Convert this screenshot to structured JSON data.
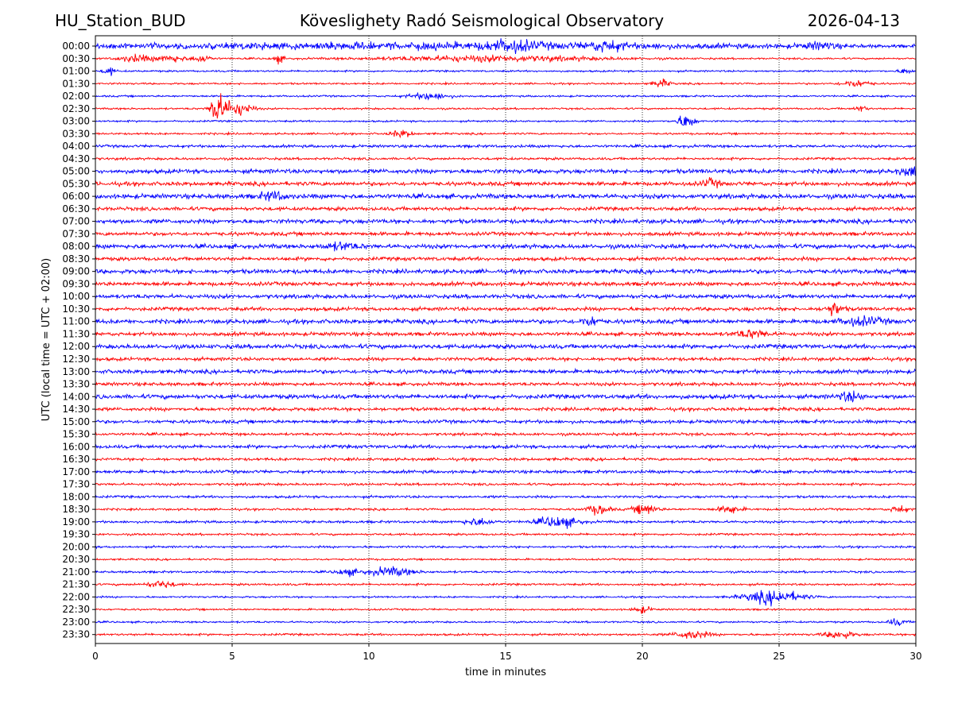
{
  "header": {
    "station": "HU_Station_BUD",
    "observatory": "Köveslighety Radó Seismological Observatory",
    "date": "2026-04-13"
  },
  "chart_data": {
    "type": "line",
    "title": "Köveslighety Radó Seismological Observatory",
    "xlabel": "time in minutes",
    "ylabel": "UTC (local time = UTC + 02:00)",
    "xlim": [
      0,
      30
    ],
    "x_ticks": [
      0,
      5,
      10,
      15,
      20,
      25,
      30
    ],
    "x_tick_labels": [
      "0",
      "5",
      "10",
      "15",
      "20",
      "25",
      "30"
    ],
    "grid": "vertical dotted lines at x ticks",
    "series_colors": [
      "#0000ff",
      "#ff0000"
    ],
    "traces": [
      {
        "label": "00:00",
        "noise": 0.3,
        "events": [
          [
            12.6,
            14.2,
            1.0
          ],
          [
            15.2,
            0.8,
            1.4
          ],
          [
            18.7,
            0.6,
            1.2
          ],
          [
            26.5,
            0.6,
            1.0
          ]
        ]
      },
      {
        "label": "00:30",
        "noise": 0.3,
        "events": [
          [
            1.5,
            0.6,
            1.2
          ],
          [
            2.8,
            0.5,
            1.1
          ],
          [
            3.9,
            0.3,
            1.3
          ],
          [
            6.7,
            0.2,
            1.2
          ],
          [
            14.5,
            4.0,
            0.9
          ]
        ]
      },
      {
        "label": "01:00",
        "noise": 0.3,
        "events": [
          [
            0.5,
            0.2,
            1.4
          ],
          [
            29.6,
            0.2,
            1.0
          ]
        ]
      },
      {
        "label": "01:30",
        "noise": 0.3,
        "events": [
          [
            20.7,
            0.3,
            1.3
          ],
          [
            27.8,
            0.5,
            1.1
          ]
        ]
      },
      {
        "label": "02:00",
        "noise": 0.3,
        "events": [
          [
            12.2,
            0.7,
            1.1
          ]
        ]
      },
      {
        "label": "02:30",
        "noise": 0.3,
        "events": [
          [
            4.4,
            0.15,
            6.0
          ],
          [
            4.7,
            0.4,
            3.0
          ],
          [
            5.4,
            0.4,
            1.8
          ],
          [
            28.0,
            0.2,
            1.0
          ]
        ]
      },
      {
        "label": "03:00",
        "noise": 0.3,
        "events": [
          [
            21.6,
            0.3,
            2.5
          ]
        ]
      },
      {
        "label": "03:30",
        "noise": 0.32,
        "events": [
          [
            11.2,
            0.4,
            1.1
          ]
        ]
      },
      {
        "label": "04:00",
        "noise": 0.45,
        "events": []
      },
      {
        "label": "04:30",
        "noise": 0.4,
        "events": []
      },
      {
        "label": "05:00",
        "noise": 0.7,
        "events": [
          [
            29.8,
            0.4,
            1.4
          ]
        ]
      },
      {
        "label": "05:30",
        "noise": 0.65,
        "events": [
          [
            22.5,
            0.3,
            1.3
          ]
        ]
      },
      {
        "label": "06:00",
        "noise": 0.75,
        "events": [
          [
            6.5,
            0.5,
            1.2
          ]
        ]
      },
      {
        "label": "06:30",
        "noise": 0.6,
        "events": []
      },
      {
        "label": "07:00",
        "noise": 0.7,
        "events": []
      },
      {
        "label": "07:30",
        "noise": 0.6,
        "events": []
      },
      {
        "label": "08:00",
        "noise": 0.7,
        "events": [
          [
            9.0,
            0.6,
            1.1
          ]
        ]
      },
      {
        "label": "08:30",
        "noise": 0.6,
        "events": []
      },
      {
        "label": "09:00",
        "noise": 0.7,
        "events": []
      },
      {
        "label": "09:30",
        "noise": 0.65,
        "events": []
      },
      {
        "label": "10:00",
        "noise": 0.65,
        "events": []
      },
      {
        "label": "10:30",
        "noise": 0.6,
        "events": [
          [
            27.0,
            0.3,
            2.0
          ]
        ]
      },
      {
        "label": "11:00",
        "noise": 0.7,
        "events": [
          [
            18.1,
            0.3,
            1.4
          ],
          [
            28.0,
            0.8,
            1.2
          ]
        ]
      },
      {
        "label": "11:30",
        "noise": 0.6,
        "events": [
          [
            24.0,
            0.6,
            1.2
          ]
        ]
      },
      {
        "label": "12:00",
        "noise": 0.7,
        "events": []
      },
      {
        "label": "12:30",
        "noise": 0.55,
        "events": []
      },
      {
        "label": "13:00",
        "noise": 0.65,
        "events": []
      },
      {
        "label": "13:30",
        "noise": 0.55,
        "events": []
      },
      {
        "label": "14:00",
        "noise": 0.7,
        "events": [
          [
            27.6,
            0.4,
            1.4
          ]
        ]
      },
      {
        "label": "14:30",
        "noise": 0.55,
        "events": []
      },
      {
        "label": "15:00",
        "noise": 0.55,
        "events": []
      },
      {
        "label": "15:30",
        "noise": 0.45,
        "events": []
      },
      {
        "label": "16:00",
        "noise": 0.55,
        "events": []
      },
      {
        "label": "16:30",
        "noise": 0.45,
        "events": []
      },
      {
        "label": "17:00",
        "noise": 0.5,
        "events": []
      },
      {
        "label": "17:30",
        "noise": 0.4,
        "events": []
      },
      {
        "label": "18:00",
        "noise": 0.4,
        "events": []
      },
      {
        "label": "18:30",
        "noise": 0.35,
        "events": [
          [
            18.4,
            0.4,
            1.6
          ],
          [
            20.1,
            0.4,
            1.8
          ],
          [
            23.2,
            0.4,
            1.3
          ],
          [
            29.4,
            0.3,
            1.2
          ]
        ]
      },
      {
        "label": "19:00",
        "noise": 0.4,
        "events": [
          [
            16.9,
            0.7,
            1.8
          ],
          [
            14.0,
            0.5,
            1.1
          ]
        ]
      },
      {
        "label": "19:30",
        "noise": 0.35,
        "events": []
      },
      {
        "label": "20:00",
        "noise": 0.35,
        "events": []
      },
      {
        "label": "20:30",
        "noise": 0.3,
        "events": []
      },
      {
        "label": "21:00",
        "noise": 0.35,
        "events": [
          [
            10.8,
            0.8,
            1.4
          ],
          [
            9.2,
            0.4,
            1.0
          ]
        ]
      },
      {
        "label": "21:30",
        "noise": 0.35,
        "events": [
          [
            2.4,
            0.5,
            1.1
          ]
        ]
      },
      {
        "label": "22:00",
        "noise": 0.3,
        "events": [
          [
            24.8,
            1.0,
            2.2
          ]
        ]
      },
      {
        "label": "22:30",
        "noise": 0.3,
        "events": [
          [
            20.0,
            0.3,
            1.1
          ]
        ]
      },
      {
        "label": "23:00",
        "noise": 0.3,
        "events": [
          [
            29.3,
            0.3,
            1.1
          ]
        ]
      },
      {
        "label": "23:30",
        "noise": 0.35,
        "events": [
          [
            21.8,
            0.6,
            1.3
          ],
          [
            27.2,
            0.5,
            1.3
          ]
        ]
      }
    ]
  }
}
